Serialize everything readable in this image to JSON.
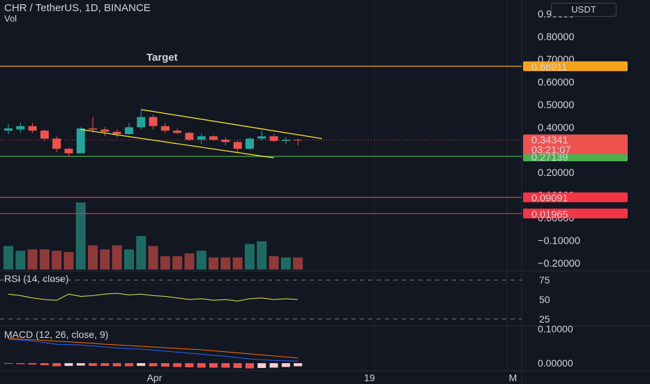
{
  "header": {
    "symbol": "CHR / TetherUS, 1D, BINANCE",
    "volume_label": "Vol",
    "currency_button": "USDT"
  },
  "colors": {
    "background": "#131722",
    "bull": "#26a69a",
    "bear": "#ef5350",
    "vol_bull": "#1f6b63",
    "vol_bear": "#8e3a3a",
    "target_line": "#f7a21b",
    "support_line": "#4caf50",
    "red_line": "#f23645",
    "channel": "#f5e62a",
    "rsi_line": "#e9e44e",
    "macd_line": "#2962ff",
    "signal_line": "#ff6d00"
  },
  "panes": {
    "rsi_label": "RSI (14, close)",
    "macd_label": "MACD (12, 26, close, 9)"
  },
  "chart_data": [
    {
      "type": "candlestick",
      "title": "CHR / TetherUS, 1D, BINANCE",
      "y_tick_labels": [
        "0.90000",
        "0.80000",
        "0.70000",
        "0.60000",
        "0.50000",
        "0.40000",
        "0.30000",
        "0.20000",
        "0.10000",
        "0.00000",
        "−0.10000",
        "−0.20000"
      ],
      "y_ticks": [
        0.9,
        0.8,
        0.7,
        0.6,
        0.5,
        0.4,
        0.3,
        0.2,
        0.1,
        0.0,
        -0.1,
        -0.2
      ],
      "ylim": [
        -0.215,
        0.915
      ],
      "x_tick_labels": [
        "Apr",
        "19",
        "M"
      ],
      "x_tick_index": [
        12,
        30,
        42
      ],
      "candles": [
        {
          "o": 0.385,
          "h": 0.415,
          "l": 0.37,
          "c": 0.395
        },
        {
          "o": 0.39,
          "h": 0.42,
          "l": 0.375,
          "c": 0.405
        },
        {
          "o": 0.405,
          "h": 0.42,
          "l": 0.375,
          "c": 0.385
        },
        {
          "o": 0.385,
          "h": 0.39,
          "l": 0.34,
          "c": 0.35
        },
        {
          "o": 0.35,
          "h": 0.36,
          "l": 0.29,
          "c": 0.305
        },
        {
          "o": 0.305,
          "h": 0.31,
          "l": 0.27,
          "c": 0.285
        },
        {
          "o": 0.285,
          "h": 0.4,
          "l": 0.285,
          "c": 0.395
        },
        {
          "o": 0.395,
          "h": 0.445,
          "l": 0.375,
          "c": 0.39
        },
        {
          "o": 0.39,
          "h": 0.4,
          "l": 0.36,
          "c": 0.38
        },
        {
          "o": 0.38,
          "h": 0.39,
          "l": 0.355,
          "c": 0.37
        },
        {
          "o": 0.37,
          "h": 0.42,
          "l": 0.365,
          "c": 0.4
        },
        {
          "o": 0.4,
          "h": 0.475,
          "l": 0.39,
          "c": 0.445
        },
        {
          "o": 0.445,
          "h": 0.455,
          "l": 0.39,
          "c": 0.405
        },
        {
          "o": 0.405,
          "h": 0.42,
          "l": 0.375,
          "c": 0.385
        },
        {
          "o": 0.385,
          "h": 0.395,
          "l": 0.37,
          "c": 0.375
        },
        {
          "o": 0.375,
          "h": 0.38,
          "l": 0.34,
          "c": 0.345
        },
        {
          "o": 0.345,
          "h": 0.375,
          "l": 0.325,
          "c": 0.36
        },
        {
          "o": 0.36,
          "h": 0.365,
          "l": 0.34,
          "c": 0.345
        },
        {
          "o": 0.345,
          "h": 0.355,
          "l": 0.32,
          "c": 0.335
        },
        {
          "o": 0.335,
          "h": 0.34,
          "l": 0.29,
          "c": 0.305
        },
        {
          "o": 0.305,
          "h": 0.355,
          "l": 0.3,
          "c": 0.35
        },
        {
          "o": 0.35,
          "h": 0.385,
          "l": 0.34,
          "c": 0.36
        },
        {
          "o": 0.36,
          "h": 0.37,
          "l": 0.335,
          "c": 0.34
        },
        {
          "o": 0.34,
          "h": 0.355,
          "l": 0.325,
          "c": 0.345
        },
        {
          "o": 0.345,
          "h": 0.35,
          "l": 0.32,
          "c": 0.343
        }
      ],
      "volume_relative": [
        0.35,
        0.28,
        0.3,
        0.3,
        0.28,
        0.26,
        1.0,
        0.36,
        0.3,
        0.36,
        0.3,
        0.5,
        0.35,
        0.2,
        0.2,
        0.24,
        0.28,
        0.18,
        0.18,
        0.18,
        0.38,
        0.42,
        0.2,
        0.18,
        0.18
      ],
      "horizontal_levels": [
        {
          "name": "target",
          "value": 0.66911,
          "label": "0.66911",
          "annotation": "Target"
        },
        {
          "name": "support",
          "value": 0.27139,
          "label": "0.27139"
        },
        {
          "name": "red-level-1",
          "value": 0.09091,
          "label": "0.09091"
        },
        {
          "name": "red-level-2",
          "value": 0.01965,
          "label": "0.01965"
        }
      ],
      "last_price": {
        "value": 0.34341,
        "label": "0.34341",
        "countdown": "03:21:07"
      },
      "channel": {
        "upper": [
          {
            "i": 11,
            "v": 0.478
          },
          {
            "i": 26,
            "v": 0.35
          }
        ],
        "lower": [
          {
            "i": 6,
            "v": 0.39
          },
          {
            "i": 22,
            "v": 0.265
          }
        ]
      }
    },
    {
      "type": "line",
      "name": "RSI (14, close)",
      "y_tick_labels": [
        "75",
        "50",
        "25"
      ],
      "y_ticks": [
        75,
        50,
        25
      ],
      "ylim": [
        15,
        85
      ],
      "values": [
        57,
        55,
        52,
        50,
        49,
        57,
        54,
        55,
        57,
        58,
        56,
        57,
        55,
        54,
        52,
        50,
        51,
        49,
        50,
        48,
        51,
        52,
        50,
        51,
        50
      ]
    },
    {
      "type": "line",
      "name": "MACD (12, 26, close, 9)",
      "y_tick_labels": [
        "0.10000",
        "0.00000"
      ],
      "y_ticks": [
        0.1,
        0.0
      ],
      "ylim": [
        -0.02,
        0.11
      ],
      "macd": [
        0.07,
        0.067,
        0.064,
        0.06,
        0.055,
        0.054,
        0.053,
        0.05,
        0.047,
        0.044,
        0.042,
        0.041,
        0.038,
        0.035,
        0.032,
        0.029,
        0.026,
        0.023,
        0.02,
        0.016,
        0.012,
        0.01,
        0.008,
        0.007,
        0.006
      ],
      "signal": [
        0.072,
        0.07,
        0.068,
        0.066,
        0.064,
        0.062,
        0.06,
        0.058,
        0.055,
        0.053,
        0.051,
        0.049,
        0.047,
        0.045,
        0.043,
        0.041,
        0.039,
        0.036,
        0.033,
        0.03,
        0.027,
        0.024,
        0.021,
        0.018,
        0.015
      ],
      "histogram": [
        -0.002,
        -0.003,
        -0.004,
        -0.006,
        -0.009,
        -0.008,
        -0.007,
        -0.008,
        -0.008,
        -0.009,
        -0.009,
        -0.008,
        -0.009,
        -0.01,
        -0.011,
        -0.012,
        -0.013,
        -0.013,
        -0.013,
        -0.014,
        -0.015,
        -0.014,
        -0.013,
        -0.011,
        -0.009
      ]
    }
  ]
}
